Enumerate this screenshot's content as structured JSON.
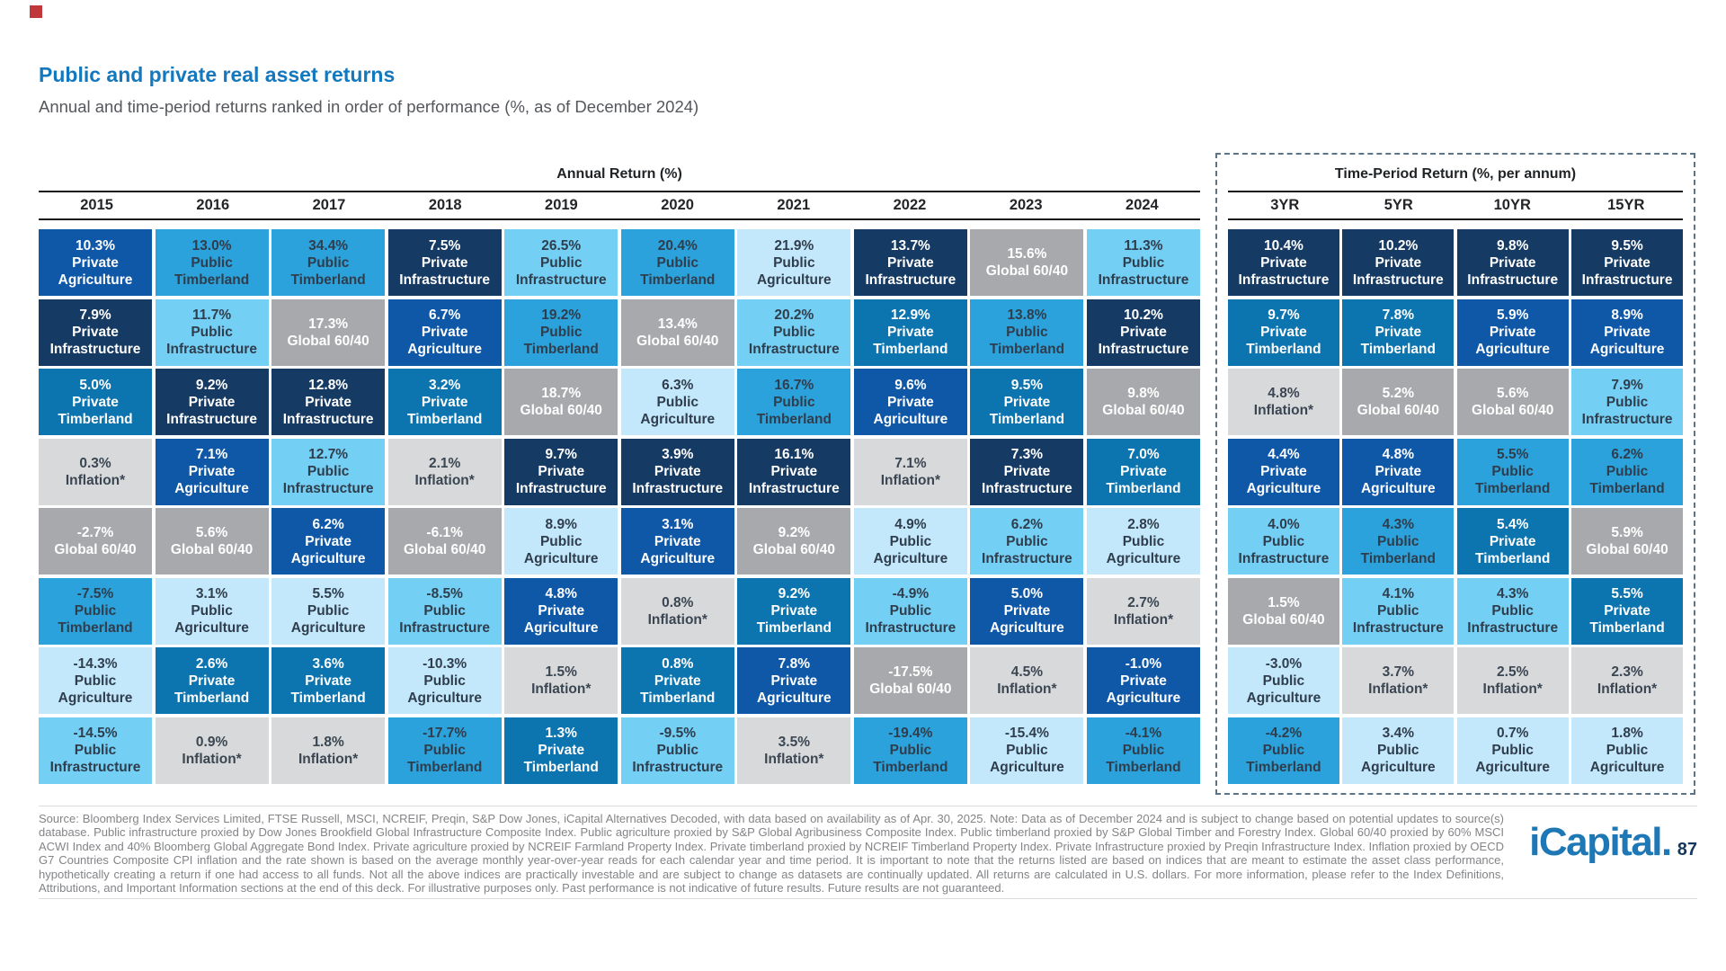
{
  "header": {
    "title": "Public and private real asset returns",
    "subtitle": "Annual and time-period returns ranked in order of performance (%, as of December 2024)"
  },
  "annual": {
    "title": "Annual Return (%)"
  },
  "period": {
    "title": "Time-Period Return (%, per annum)"
  },
  "footer": {
    "disclosure": "Source: Bloomberg Index Services Limited, FTSE Russell, MSCI, NCREIF, Preqin, S&P Dow Jones, iCapital Alternatives Decoded, with data based on availability as of Apr. 30, 2025. Note: Data as of December 2024 and is subject to change based on potential updates to source(s) database. Public infrastructure proxied by Dow Jones Brookfield Global Infrastructure Composite Index. Public agriculture proxied by S&P Global Agribusiness Composite Index. Public timberland proxied by S&P Global Timber and Forestry Index. Global 60/40 proxied by 60% MSCI ACWI Index and 40% Bloomberg Global Aggregate Bond Index. Private agriculture proxied by NCREIF Farmland Property Index. Private timberland proxied by NCREIF Timberland Property Index. Private Infrastructure proxied by Preqin Infrastructure Index. Inflation proxied by OECD G7 Countries Composite CPI inflation and the rate shown is based on the average monthly year-over-year reads for each calendar year and time period. It is important to note that the returns listed are based on indices that are meant to estimate the asset class performance, hypothetically creating a return if one had access to all funds. Not all the above indices are practically investable and are subject to change as datasets are continually updated. All returns are calculated in U.S. dollars. For more information, please refer to the Index Definitions, Attributions, and Important Information sections at the end of this deck. For illustrative purposes only. Past performance is not indicative of future results. Future results are not guaranteed.",
    "brand": "iCapital.",
    "page_number": "87"
  },
  "colors": {
    "Private Infrastructure": {
      "bg": "#153A63",
      "text": "#FFFFFF"
    },
    "Private Agriculture": {
      "bg": "#0F58A8",
      "text": "#FFFFFF"
    },
    "Private Timberland": {
      "bg": "#0C74AF",
      "text": "#FFFFFF"
    },
    "Public Timberland": {
      "bg": "#2BA2DB",
      "text": "#2F3D4C"
    },
    "Public Infrastructure": {
      "bg": "#74CFF5",
      "text": "#2F3D4C"
    },
    "Public Agriculture": {
      "bg": "#C3E8FB",
      "text": "#2F3D4C"
    },
    "Global 60/40": {
      "bg": "#A7A9AC",
      "text": "#FFFFFF"
    },
    "Inflation*": {
      "bg": "#D8D9DB",
      "text": "#3A4652"
    }
  },
  "chart_data": {
    "type": "table",
    "description": "Asset classes ranked top-to-bottom by return within each column",
    "annual_columns": [
      {
        "label": "2015",
        "cells": [
          {
            "value": "10.3%",
            "asset": "Private Agriculture"
          },
          {
            "value": "7.9%",
            "asset": "Private Infrastructure"
          },
          {
            "value": "5.0%",
            "asset": "Private Timberland"
          },
          {
            "value": "0.3%",
            "asset": "Inflation*"
          },
          {
            "value": "-2.7%",
            "asset": "Global 60/40"
          },
          {
            "value": "-7.5%",
            "asset": "Public Timberland"
          },
          {
            "value": "-14.3%",
            "asset": "Public Agriculture"
          },
          {
            "value": "-14.5%",
            "asset": "Public Infrastructure"
          }
        ]
      },
      {
        "label": "2016",
        "cells": [
          {
            "value": "13.0%",
            "asset": "Public Timberland"
          },
          {
            "value": "11.7%",
            "asset": "Public Infrastructure"
          },
          {
            "value": "9.2%",
            "asset": "Private Infrastructure"
          },
          {
            "value": "7.1%",
            "asset": "Private Agriculture"
          },
          {
            "value": "5.6%",
            "asset": "Global 60/40"
          },
          {
            "value": "3.1%",
            "asset": "Public Agriculture"
          },
          {
            "value": "2.6%",
            "asset": "Private Timberland"
          },
          {
            "value": "0.9%",
            "asset": "Inflation*"
          }
        ]
      },
      {
        "label": "2017",
        "cells": [
          {
            "value": "34.4%",
            "asset": "Public Timberland"
          },
          {
            "value": "17.3%",
            "asset": "Global 60/40"
          },
          {
            "value": "12.8%",
            "asset": "Private Infrastructure"
          },
          {
            "value": "12.7%",
            "asset": "Public Infrastructure"
          },
          {
            "value": "6.2%",
            "asset": "Private Agriculture"
          },
          {
            "value": "5.5%",
            "asset": "Public Agriculture"
          },
          {
            "value": "3.6%",
            "asset": "Private Timberland"
          },
          {
            "value": "1.8%",
            "asset": "Inflation*"
          }
        ]
      },
      {
        "label": "2018",
        "cells": [
          {
            "value": "7.5%",
            "asset": "Private Infrastructure"
          },
          {
            "value": "6.7%",
            "asset": "Private Agriculture"
          },
          {
            "value": "3.2%",
            "asset": "Private Timberland"
          },
          {
            "value": "2.1%",
            "asset": "Inflation*"
          },
          {
            "value": "-6.1%",
            "asset": "Global 60/40"
          },
          {
            "value": "-8.5%",
            "asset": "Public Infrastructure"
          },
          {
            "value": "-10.3%",
            "asset": "Public Agriculture"
          },
          {
            "value": "-17.7%",
            "asset": "Public Timberland"
          }
        ]
      },
      {
        "label": "2019",
        "cells": [
          {
            "value": "26.5%",
            "asset": "Public Infrastructure"
          },
          {
            "value": "19.2%",
            "asset": "Public Timberland"
          },
          {
            "value": "18.7%",
            "asset": "Global 60/40"
          },
          {
            "value": "9.7%",
            "asset": "Private Infrastructure"
          },
          {
            "value": "8.9%",
            "asset": "Public Agriculture"
          },
          {
            "value": "4.8%",
            "asset": "Private Agriculture"
          },
          {
            "value": "1.5%",
            "asset": "Inflation*"
          },
          {
            "value": "1.3%",
            "asset": "Private Timberland"
          }
        ]
      },
      {
        "label": "2020",
        "cells": [
          {
            "value": "20.4%",
            "asset": "Public Timberland"
          },
          {
            "value": "13.4%",
            "asset": "Global 60/40"
          },
          {
            "value": "6.3%",
            "asset": "Public Agriculture"
          },
          {
            "value": "3.9%",
            "asset": "Private Infrastructure"
          },
          {
            "value": "3.1%",
            "asset": "Private Agriculture"
          },
          {
            "value": "0.8%",
            "asset": "Inflation*"
          },
          {
            "value": "0.8%",
            "asset": "Private Timberland"
          },
          {
            "value": "-9.5%",
            "asset": "Public Infrastructure"
          }
        ]
      },
      {
        "label": "2021",
        "cells": [
          {
            "value": "21.9%",
            "asset": "Public Agriculture"
          },
          {
            "value": "20.2%",
            "asset": "Public Infrastructure"
          },
          {
            "value": "16.7%",
            "asset": "Public Timberland"
          },
          {
            "value": "16.1%",
            "asset": "Private Infrastructure"
          },
          {
            "value": "9.2%",
            "asset": "Global 60/40"
          },
          {
            "value": "9.2%",
            "asset": "Private Timberland"
          },
          {
            "value": "7.8%",
            "asset": "Private Agriculture"
          },
          {
            "value": "3.5%",
            "asset": "Inflation*"
          }
        ]
      },
      {
        "label": "2022",
        "cells": [
          {
            "value": "13.7%",
            "asset": "Private Infrastructure"
          },
          {
            "value": "12.9%",
            "asset": "Private Timberland"
          },
          {
            "value": "9.6%",
            "asset": "Private Agriculture"
          },
          {
            "value": "7.1%",
            "asset": "Inflation*"
          },
          {
            "value": "4.9%",
            "asset": "Public Agriculture"
          },
          {
            "value": "-4.9%",
            "asset": "Public Infrastructure"
          },
          {
            "value": "-17.5%",
            "asset": "Global 60/40"
          },
          {
            "value": "-19.4%",
            "asset": "Public Timberland"
          }
        ]
      },
      {
        "label": "2023",
        "cells": [
          {
            "value": "15.6%",
            "asset": "Global 60/40"
          },
          {
            "value": "13.8%",
            "asset": "Public Timberland"
          },
          {
            "value": "9.5%",
            "asset": "Private Timberland"
          },
          {
            "value": "7.3%",
            "asset": "Private Infrastructure"
          },
          {
            "value": "6.2%",
            "asset": "Public Infrastructure"
          },
          {
            "value": "5.0%",
            "asset": "Private Agriculture"
          },
          {
            "value": "4.5%",
            "asset": "Inflation*"
          },
          {
            "value": "-15.4%",
            "asset": "Public Agriculture"
          }
        ]
      },
      {
        "label": "2024",
        "cells": [
          {
            "value": "11.3%",
            "asset": "Public Infrastructure"
          },
          {
            "value": "10.2%",
            "asset": "Private Infrastructure"
          },
          {
            "value": "9.8%",
            "asset": "Global 60/40"
          },
          {
            "value": "7.0%",
            "asset": "Private Timberland"
          },
          {
            "value": "2.8%",
            "asset": "Public Agriculture"
          },
          {
            "value": "2.7%",
            "asset": "Inflation*"
          },
          {
            "value": "-1.0%",
            "asset": "Private Agriculture"
          },
          {
            "value": "-4.1%",
            "asset": "Public Timberland"
          }
        ]
      }
    ],
    "period_columns": [
      {
        "label": "3YR",
        "cells": [
          {
            "value": "10.4%",
            "asset": "Private Infrastructure"
          },
          {
            "value": "9.7%",
            "asset": "Private Timberland"
          },
          {
            "value": "4.8%",
            "asset": "Inflation*"
          },
          {
            "value": "4.4%",
            "asset": "Private Agriculture"
          },
          {
            "value": "4.0%",
            "asset": "Public Infrastructure"
          },
          {
            "value": "1.5%",
            "asset": "Global 60/40"
          },
          {
            "value": "-3.0%",
            "asset": "Public Agriculture"
          },
          {
            "value": "-4.2%",
            "asset": "Public Timberland"
          }
        ]
      },
      {
        "label": "5YR",
        "cells": [
          {
            "value": "10.2%",
            "asset": "Private Infrastructure"
          },
          {
            "value": "7.8%",
            "asset": "Private Timberland"
          },
          {
            "value": "5.2%",
            "asset": "Global 60/40"
          },
          {
            "value": "4.8%",
            "asset": "Private Agriculture"
          },
          {
            "value": "4.3%",
            "asset": "Public Timberland"
          },
          {
            "value": "4.1%",
            "asset": "Public Infrastructure"
          },
          {
            "value": "3.7%",
            "asset": "Inflation*"
          },
          {
            "value": "3.4%",
            "asset": "Public Agriculture"
          }
        ]
      },
      {
        "label": "10YR",
        "cells": [
          {
            "value": "9.8%",
            "asset": "Private Infrastructure"
          },
          {
            "value": "5.9%",
            "asset": "Private Agriculture"
          },
          {
            "value": "5.6%",
            "asset": "Global 60/40"
          },
          {
            "value": "5.5%",
            "asset": "Public Timberland"
          },
          {
            "value": "5.4%",
            "asset": "Private Timberland"
          },
          {
            "value": "4.3%",
            "asset": "Public Infrastructure"
          },
          {
            "value": "2.5%",
            "asset": "Inflation*"
          },
          {
            "value": "0.7%",
            "asset": "Public Agriculture"
          }
        ]
      },
      {
        "label": "15YR",
        "cells": [
          {
            "value": "9.5%",
            "asset": "Private Infrastructure"
          },
          {
            "value": "8.9%",
            "asset": "Private Agriculture"
          },
          {
            "value": "7.9%",
            "asset": "Public Infrastructure"
          },
          {
            "value": "6.2%",
            "asset": "Public Timberland"
          },
          {
            "value": "5.9%",
            "asset": "Global 60/40"
          },
          {
            "value": "5.5%",
            "asset": "Private Timberland"
          },
          {
            "value": "2.3%",
            "asset": "Inflation*"
          },
          {
            "value": "1.8%",
            "asset": "Public Agriculture"
          }
        ]
      }
    ]
  }
}
